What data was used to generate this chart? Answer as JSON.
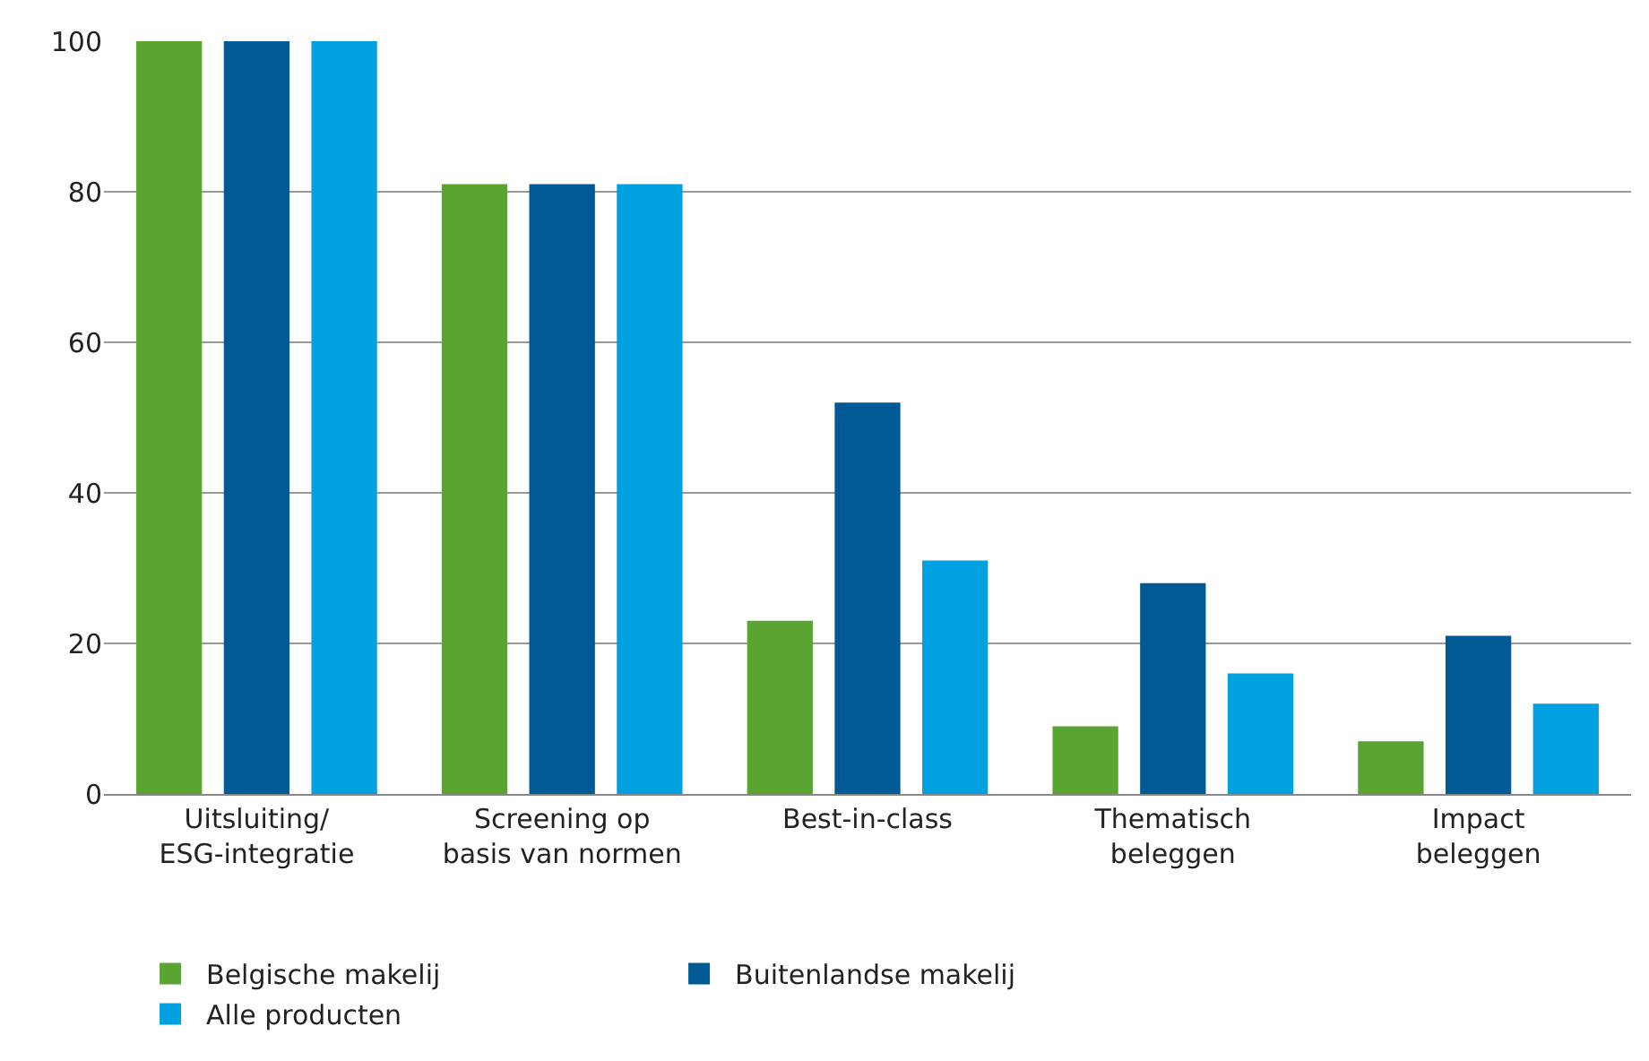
{
  "chart_data": {
    "type": "bar",
    "categories": [
      "Uitsluiting/\nESG-integratie",
      "Screening op\nbasis van normen",
      "Best-in-class",
      "Thematisch\nbeleggen",
      "Impact\nbeleggen"
    ],
    "series": [
      {
        "name": "Belgische makelij",
        "color": "#5aa532",
        "values": [
          100,
          81,
          23,
          9,
          7
        ]
      },
      {
        "name": "Buitenlandse makelij",
        "color": "#005a96",
        "values": [
          100,
          81,
          52,
          28,
          21
        ]
      },
      {
        "name": "Alle producten",
        "color": "#00a0e1",
        "values": [
          100,
          81,
          31,
          16,
          12
        ]
      }
    ],
    "ylim": [
      0,
      100
    ],
    "yticks": [
      0,
      20,
      40,
      60,
      80,
      100
    ],
    "grid": "y",
    "legend": "bottom"
  }
}
